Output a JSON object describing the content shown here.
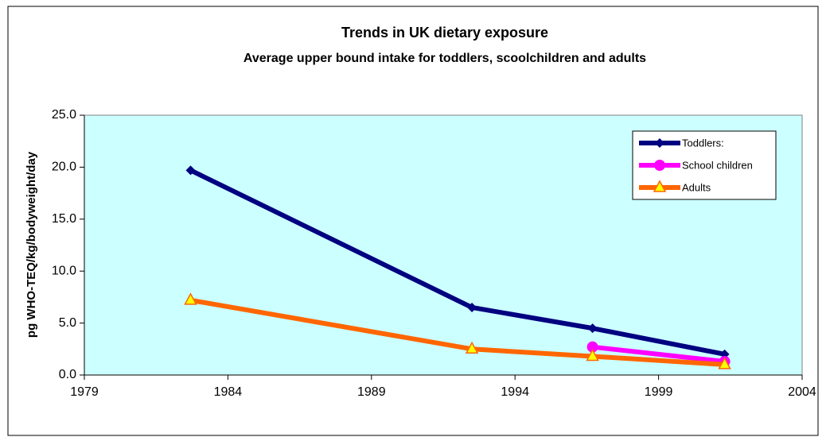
{
  "chart_data": {
    "type": "line",
    "title": "Trends in UK dietary exposure",
    "subtitle": "Average upper bound intake for toddlers, scoolchildren and adults",
    "y_label": "pg WHO-TEQ/kg/bodyweight/day",
    "x": [
      1982.7,
      1992.5,
      1996.7,
      2001.3
    ],
    "series": [
      {
        "name": "Toddlers:",
        "color": "#000080",
        "marker": "diamond",
        "values": [
          19.7,
          6.5,
          4.5,
          2.0
        ]
      },
      {
        "name": "School children",
        "color": "#ff00ff",
        "marker": "circle",
        "values": [
          null,
          null,
          2.7,
          1.3
        ]
      },
      {
        "name": "Adults",
        "color": "#ff6600",
        "marker": "triangle",
        "values": [
          7.2,
          2.5,
          1.8,
          1.0
        ]
      }
    ],
    "xlim": [
      1979,
      2004
    ],
    "xticks": [
      1979,
      1984,
      1989,
      1994,
      1999,
      2004
    ],
    "ylim": [
      0,
      25
    ],
    "yticks": [
      {
        "value": 0,
        "label": "0.0"
      },
      {
        "value": 5,
        "label": "5.0"
      },
      {
        "value": 10,
        "label": "10.0"
      },
      {
        "value": 15,
        "label": "15.0"
      },
      {
        "value": 20,
        "label": "20.0"
      },
      {
        "value": 25,
        "label": "25.0"
      }
    ],
    "plot_background": "#ccffff",
    "legend": "upper-right",
    "grid": false
  }
}
